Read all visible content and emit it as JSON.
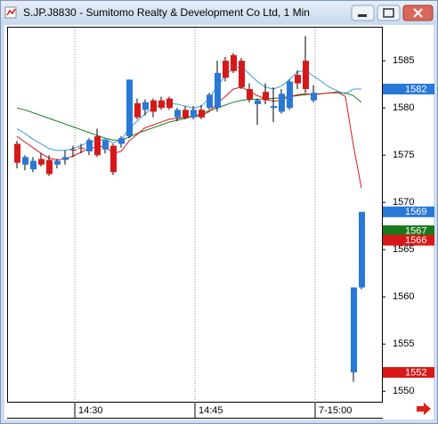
{
  "chart_data": {
    "type": "candlestick",
    "title": "S.JP.J8830 - Sumitomo Realty & Development Co Ltd, 1 Min",
    "categories": [
      null,
      null,
      null,
      null,
      null,
      null,
      null,
      "14:30",
      null,
      null,
      null,
      null,
      null,
      null,
      null,
      null,
      null,
      null,
      null,
      null,
      null,
      null,
      "14:45",
      null,
      null,
      null,
      null,
      null,
      null,
      null,
      null,
      null,
      null,
      null,
      null,
      null,
      null,
      "7-15:00",
      null,
      null,
      null,
      null,
      null,
      null
    ],
    "open": [
      1576.2,
      1574.0,
      1573.5,
      1574.6,
      1574.5,
      1574.0,
      1574.5,
      1575.6,
      1575.8,
      1575.4,
      1577.0,
      1575.6,
      1576.0,
      1576.2,
      1577.0,
      1580.5,
      1579.8,
      1580.8,
      1580.8,
      1581.0,
      1579.0,
      1579.8,
      1579.0,
      1579.8,
      1580.0,
      1580.0,
      1585.0,
      1585.6,
      1585.0,
      1582.0,
      1580.4,
      1581.7,
      1580.0,
      1579.6,
      1580.0,
      1583.5,
      1585.0,
      1580.8,
      null,
      null,
      null,
      null,
      1552.0,
      1561.0
    ],
    "high": [
      1576.5,
      1575.0,
      1574.8,
      1575.2,
      1575.0,
      1574.6,
      1575.5,
      1576.0,
      1576.2,
      1576.8,
      1577.8,
      1576.6,
      1576.2,
      1577.0,
      1583.0,
      1581.0,
      1580.9,
      1581.0,
      1581.2,
      1581.2,
      1580.0,
      1580.2,
      1580.2,
      1580.3,
      1581.6,
      1585.0,
      1585.4,
      1585.8,
      1585.3,
      1582.6,
      1581.0,
      1582.6,
      1582.2,
      1582.0,
      1583.0,
      1584.0,
      1587.6,
      1582.4,
      null,
      null,
      null,
      null,
      1561.0,
      1569.0
    ],
    "low": [
      1573.6,
      1573.4,
      1573.2,
      1573.8,
      1572.8,
      1573.6,
      1574.0,
      1574.8,
      1575.2,
      1575.0,
      1574.8,
      1575.2,
      1572.9,
      1575.8,
      1576.8,
      1578.8,
      1579.2,
      1579.0,
      1579.8,
      1579.8,
      1578.6,
      1578.8,
      1578.8,
      1578.8,
      1579.8,
      1579.6,
      1582.8,
      1583.7,
      1582.0,
      1580.6,
      1578.2,
      1580.4,
      1578.5,
      1579.4,
      1579.8,
      1582.0,
      1581.6,
      1580.6,
      null,
      null,
      null,
      null,
      1551.0,
      1560.8
    ],
    "close": [
      1574.2,
      1574.8,
      1574.4,
      1574.0,
      1573.0,
      1574.4,
      1574.8,
      1575.5,
      1575.7,
      1576.6,
      1575.0,
      1576.6,
      1573.2,
      1576.8,
      1583.0,
      1579.0,
      1580.6,
      1579.6,
      1580.0,
      1580.0,
      1579.8,
      1579.0,
      1579.8,
      1579.0,
      1581.4,
      1583.7,
      1583.2,
      1583.9,
      1582.2,
      1580.9,
      1580.8,
      1580.8,
      1580.2,
      1581.5,
      1582.8,
      1582.6,
      1582.0,
      1581.6,
      null,
      null,
      null,
      null,
      1561.0,
      1569.0
    ],
    "up_color": "#2878d8",
    "down_color": "#d81818",
    "series": [
      {
        "color": "#1a7a1a",
        "values": [
          1580.0,
          1579.8,
          1579.5,
          1579.2,
          1578.9,
          1578.6,
          1578.3,
          1578.0,
          1577.7,
          1577.4,
          1577.1,
          1576.8,
          1576.6,
          1576.6,
          1576.9,
          1577.3,
          1577.6,
          1577.9,
          1578.2,
          1578.5,
          1578.7,
          1578.9,
          1579.1,
          1579.4,
          1579.7,
          1580.0,
          1580.3,
          1580.6,
          1580.8,
          1580.9,
          1580.9,
          1581.0,
          1581.0,
          1581.1,
          1581.2,
          1581.3,
          1581.4,
          1581.5,
          1581.5,
          1581.6,
          1581.6,
          1581.6,
          1581.3,
          1580.6
        ]
      },
      {
        "color": "#d81818",
        "values": [
          1577.0,
          1576.4,
          1575.8,
          1575.2,
          1574.7,
          1574.5,
          1574.6,
          1574.9,
          1575.3,
          1575.8,
          1575.8,
          1576.0,
          1575.2,
          1575.4,
          1576.5,
          1577.2,
          1577.9,
          1578.2,
          1578.5,
          1578.8,
          1578.9,
          1579.0,
          1579.1,
          1579.2,
          1579.6,
          1580.5,
          1581.2,
          1582.0,
          1582.2,
          1581.8,
          1581.3,
          1581.0,
          1580.7,
          1580.8,
          1581.2,
          1581.4,
          1581.5,
          1581.4,
          1581.5,
          1581.6,
          1581.7,
          1581.2,
          1576.0,
          1571.5
        ]
      },
      {
        "color": "#3a9ae0",
        "values": [
          1577.8,
          1577.3,
          1576.7,
          1576.2,
          1575.7,
          1575.5,
          1575.5,
          1575.7,
          1576.0,
          1576.4,
          1576.5,
          1576.7,
          1576.3,
          1576.6,
          1577.8,
          1578.6,
          1579.4,
          1580.0,
          1580.4,
          1580.5,
          1580.4,
          1580.2,
          1580.0,
          1580.2,
          1581.0,
          1582.3,
          1583.4,
          1584.2,
          1584.4,
          1583.6,
          1582.8,
          1582.2,
          1582.0,
          1582.3,
          1583.0,
          1583.8,
          1584.0,
          1583.4,
          1582.8,
          1582.2,
          1581.8,
          1581.5,
          1582.0,
          1582.0
        ]
      }
    ],
    "ylim": [
      1548.8,
      1588.6
    ],
    "yticks": [
      1550,
      1555,
      1560,
      1565,
      1570,
      1575,
      1580,
      1585
    ],
    "markers": [
      {
        "value": 1582,
        "color": "#2878d8"
      },
      {
        "value": 1569,
        "color": "#2878d8"
      },
      {
        "value": 1567,
        "color": "#1a7a1a"
      },
      {
        "value": 1566,
        "color": "#d81818"
      },
      {
        "value": 1552,
        "color": "#d81818"
      }
    ]
  }
}
